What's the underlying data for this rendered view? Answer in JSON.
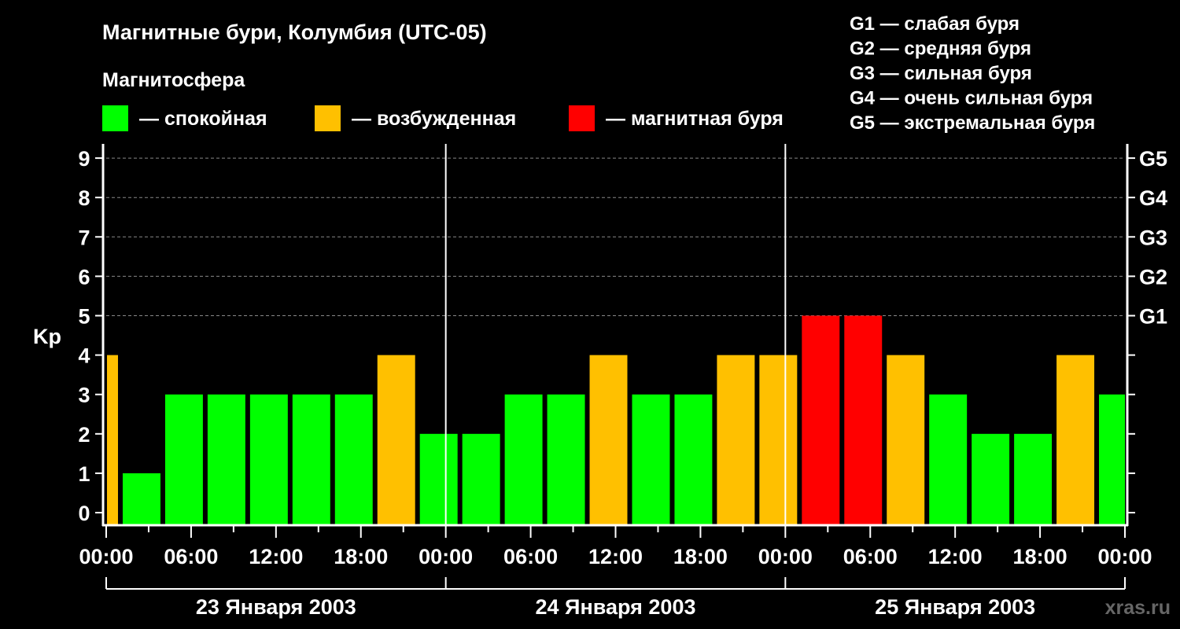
{
  "chart_data": {
    "type": "bar",
    "title": "Магнитные бури, Колумбия (UTC-05)",
    "legend_title": "Магнитосфера",
    "legend": [
      {
        "label": "— спокойная",
        "color": "#00ff00"
      },
      {
        "label": "— возбужденная",
        "color": "#ffc000"
      },
      {
        "label": "— магнитная буря",
        "color": "#ff0000"
      }
    ],
    "storm_scale": [
      "G1 — слабая буря",
      "G2 — средняя буря",
      "G3 — сильная буря",
      "G4 — очень сильная буря",
      "G5 — экстремальная буря"
    ],
    "ylabel": "Kp",
    "ylim": [
      0,
      9
    ],
    "yticks": [
      "0",
      "1",
      "2",
      "3",
      "4",
      "5",
      "6",
      "7",
      "8",
      "9"
    ],
    "right_ticks": [
      {
        "value": 5,
        "label": "G1"
      },
      {
        "value": 6,
        "label": "G2"
      },
      {
        "value": 7,
        "label": "G3"
      },
      {
        "value": 8,
        "label": "G4"
      },
      {
        "value": 9,
        "label": "G5"
      }
    ],
    "xlim_hours": [
      0,
      72
    ],
    "xticks": [
      "00:00",
      "06:00",
      "12:00",
      "18:00",
      "00:00",
      "06:00",
      "12:00",
      "18:00",
      "00:00",
      "06:00",
      "12:00",
      "18:00",
      "00:00"
    ],
    "days": [
      "23 Января 2003",
      "24 Января 2003",
      "25 Января 2003"
    ],
    "bar_start_hours": -2,
    "bar_hours": 3,
    "values": [
      4,
      1,
      3,
      3,
      3,
      3,
      3,
      4,
      2,
      2,
      3,
      3,
      4,
      3,
      3,
      4,
      4,
      5,
      5,
      4,
      3,
      2,
      2,
      4,
      3
    ]
  },
  "watermark": "xras.ru"
}
